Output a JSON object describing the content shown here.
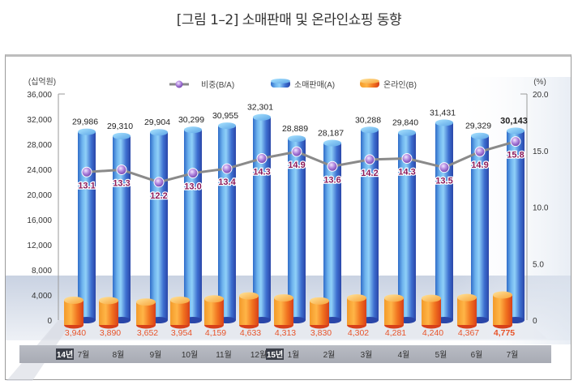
{
  "title": "[그림 1–2] 소매판매 및 온라인쇼핑 동향",
  "chart_data": {
    "type": "bar",
    "title": "[그림 1–2] 소매판매 및 온라인쇼핑 동향",
    "categories": [
      "7월",
      "8월",
      "9월",
      "10월",
      "11월",
      "12월",
      "1월",
      "2월",
      "3월",
      "4월",
      "5월",
      "6월",
      "7월"
    ],
    "year_markers": [
      {
        "index": 0,
        "label": "14년"
      },
      {
        "index": 6,
        "label": "15년"
      }
    ],
    "left_axis": {
      "unit_label": "(십억원)",
      "ylim": [
        0,
        36000
      ],
      "ticks": [
        0,
        4000,
        8000,
        12000,
        16000,
        20000,
        24000,
        28000,
        32000,
        36000
      ],
      "tick_labels": [
        "0",
        "4,000",
        "8,000",
        "12,000",
        "16,000",
        "20,000",
        "24,000",
        "28,000",
        "32,000",
        "36,000"
      ]
    },
    "right_axis": {
      "unit_label": "(%)",
      "ylim": [
        0,
        20.0
      ],
      "ticks": [
        0,
        5,
        10,
        15,
        20
      ],
      "tick_labels": [
        "0",
        "5.0",
        "10.0",
        "15.0",
        "20.0"
      ]
    },
    "series": [
      {
        "name": "소매판매(A)",
        "kind": "bar",
        "axis": "left",
        "color": "#3f7fd8",
        "values": [
          29986,
          29310,
          29904,
          30299,
          30955,
          32301,
          28889,
          28187,
          30288,
          29840,
          31431,
          29329,
          30143
        ],
        "labels": [
          "29,986",
          "29,310",
          "29,904",
          "30,299",
          "30,955",
          "32,301",
          "28,889",
          "28,187",
          "30,288",
          "29,840",
          "31,431",
          "29,329",
          "30,143"
        ]
      },
      {
        "name": "온라인(B)",
        "kind": "bar",
        "axis": "left",
        "color": "#f08a24",
        "label_color": "#e8542a",
        "values": [
          3940,
          3890,
          3652,
          3954,
          4159,
          4633,
          4313,
          3830,
          4302,
          4281,
          4240,
          4367,
          4775
        ],
        "labels": [
          "3,940",
          "3,890",
          "3,652",
          "3,954",
          "4,159",
          "4,633",
          "4,313",
          "3,830",
          "4,302",
          "4,281",
          "4,240",
          "4,367",
          "4,775"
        ]
      },
      {
        "name": "비중(B/A)",
        "kind": "line",
        "axis": "right",
        "color": "#8a8a8a",
        "marker_color": "#9b6bc8",
        "label_color": "#8b1a5a",
        "values": [
          13.1,
          13.3,
          12.2,
          13.0,
          13.4,
          14.3,
          14.9,
          13.6,
          14.2,
          14.3,
          13.5,
          14.9,
          15.8
        ],
        "labels": [
          "13.1",
          "13.3",
          "12.2",
          "13.0",
          "13.4",
          "14.3",
          "14.9",
          "13.6",
          "14.2",
          "14.3",
          "13.5",
          "14.9",
          "15.8"
        ]
      }
    ],
    "legend": {
      "placement": "top-center",
      "items": [
        "비중(B/A)",
        "소매판매(A)",
        "온라인(B)"
      ]
    },
    "highlight_last": true,
    "grid": false
  }
}
